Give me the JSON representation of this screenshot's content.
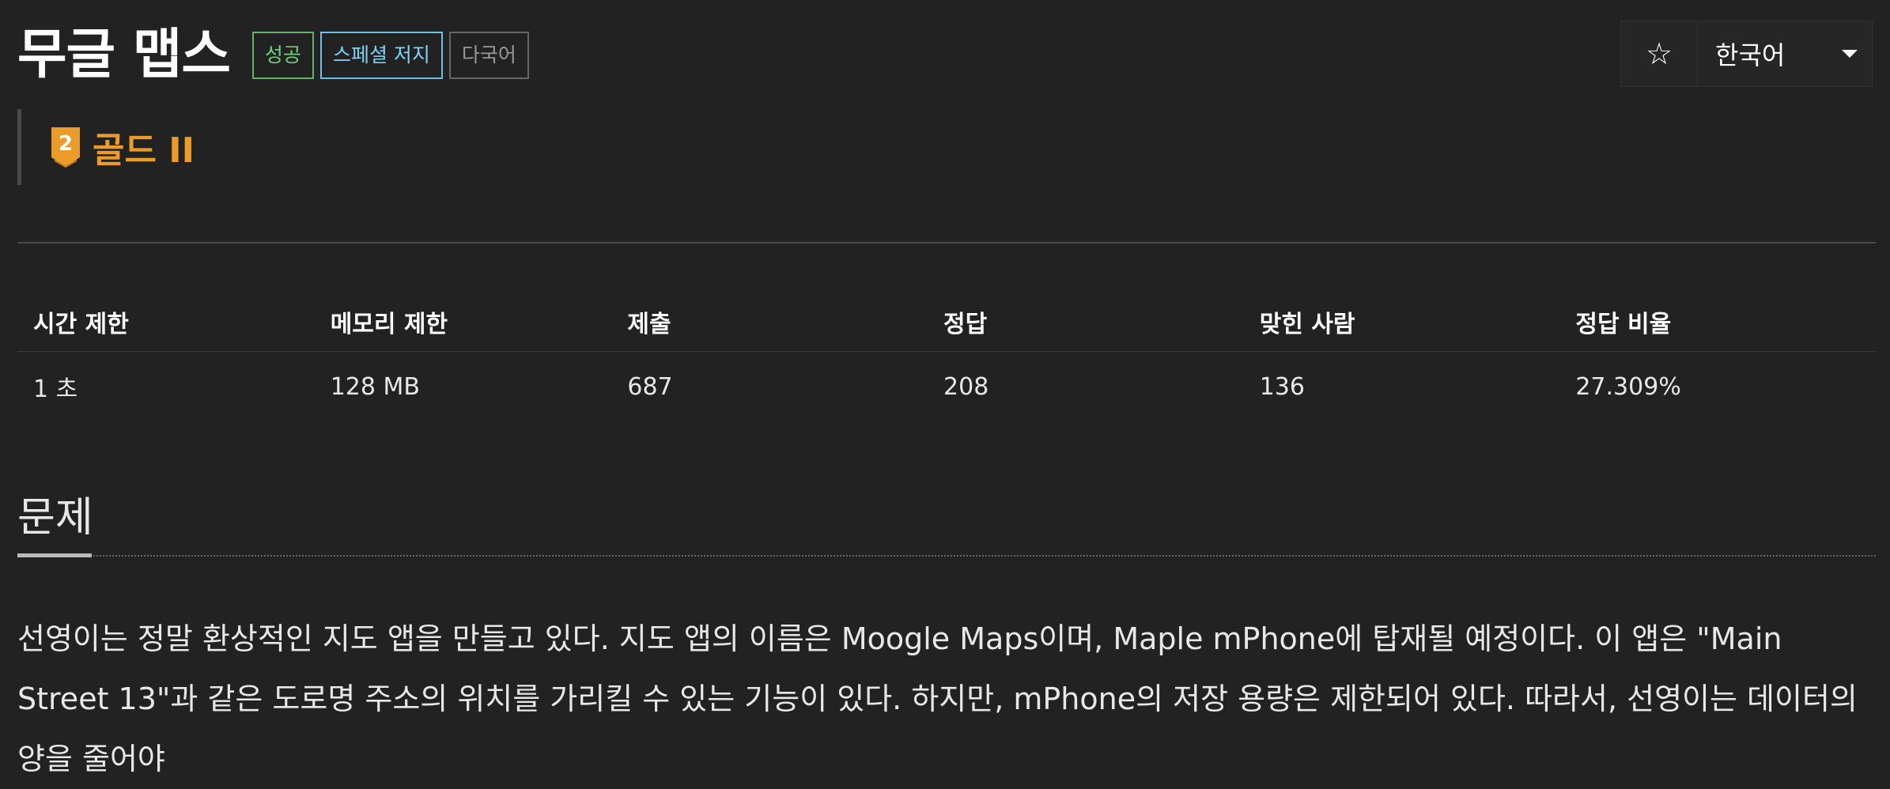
{
  "header": {
    "title": "무글 맵스",
    "badges": {
      "success": "성공",
      "special": "스페셜 저지",
      "multi": "다국어"
    },
    "star_icon": "☆",
    "language": "한국어"
  },
  "tier": {
    "number": "2",
    "label": "골드 II",
    "color": "#ec9a29"
  },
  "stats": {
    "headers": [
      "시간 제한",
      "메모리 제한",
      "제출",
      "정답",
      "맞힌 사람",
      "정답 비율"
    ],
    "values": [
      "1 초",
      "128 MB",
      "687",
      "208",
      "136",
      "27.309%"
    ]
  },
  "section": {
    "title": "문제",
    "description": "선영이는 정말 환상적인 지도 앱을 만들고 있다. 지도 앱의 이름은 Moogle Maps이며, Maple mPhone에 탑재될 예정이다. 이 앱은 \"Main Street 13\"과 같은 도로명 주소의 위치를 가리킬 수 있는 기능이 있다. 하지만, mPhone의 저장 용량은 제한되어 있다. 따라서, 선영이는 데이터의 양을 줄어야"
  }
}
